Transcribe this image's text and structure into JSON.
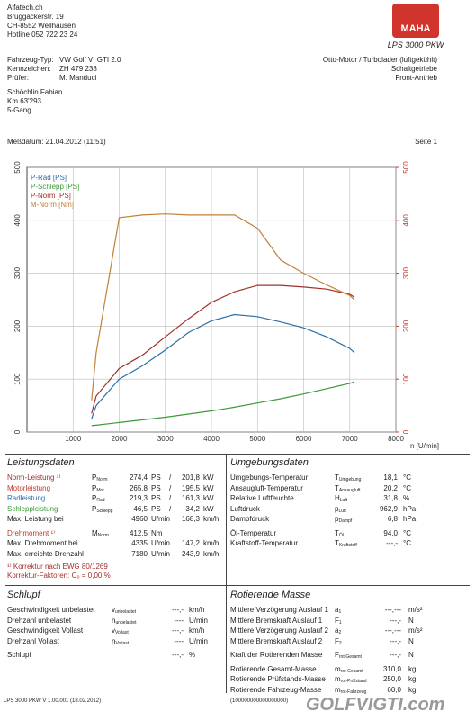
{
  "header": {
    "lines": [
      "Alfatech.ch",
      "Bruggackerstr. 19",
      "CH-8552 Wellhausen",
      "Hotline 052 722 23 24"
    ]
  },
  "logo": {
    "brand": "MAHA",
    "model": "LPS 3000 PKW"
  },
  "vehicle": {
    "rows": [
      [
        "Fahrzeug-Typ:",
        "VW Golf VI GTI 2.0",
        "Otto-Motor / Turbolader (luftgekühlt)"
      ],
      [
        "Kennzeichen:",
        "ZH 479 238",
        "Schaltgetriebe"
      ],
      [
        "Prüfer:",
        "M. Manduci",
        "Front-Antrieb"
      ]
    ]
  },
  "owner": {
    "lines": [
      "Schöchlin Fabian",
      "Km 63'293",
      "5-Gang"
    ]
  },
  "measurement": {
    "date": "Meßdatum: 21.04.2012 (11:51)",
    "page": "Seite 1"
  },
  "chart_data": {
    "type": "line",
    "x": [
      1400,
      1500,
      2000,
      2500,
      3000,
      3500,
      4000,
      4500,
      5000,
      5500,
      6000,
      6500,
      7000,
      7100
    ],
    "series": [
      {
        "name": "P-Rad [PS]",
        "color": "#2a6fa8",
        "values": [
          25,
          50,
          100,
          125,
          155,
          188,
          210,
          222,
          218,
          208,
          197,
          180,
          158,
          150
        ]
      },
      {
        "name": "P-Schlepp [PS]",
        "color": "#3a9a3a",
        "values": [
          12,
          13,
          18,
          23,
          28,
          34,
          40,
          47,
          55,
          63,
          72,
          82,
          92,
          95
        ]
      },
      {
        "name": "P-Norm [PS]",
        "color": "#a0302a",
        "values": [
          35,
          68,
          120,
          145,
          180,
          214,
          245,
          265,
          277,
          277,
          274,
          270,
          260,
          255
        ]
      },
      {
        "name": "M-Norm [Nm]",
        "color": "#c0803a",
        "axis": "y2",
        "values": [
          60,
          150,
          405,
          410,
          412,
          410,
          410,
          410,
          385,
          325,
          300,
          278,
          258,
          250
        ]
      }
    ],
    "x_label": "n [U/min]",
    "xlim": [
      0,
      8000
    ],
    "xticks": [
      1000,
      2000,
      3000,
      4000,
      5000,
      6000,
      7000,
      8000
    ],
    "ylim": [
      0,
      500
    ],
    "yticks": [
      0,
      100,
      200,
      300,
      400,
      500
    ],
    "y2lim": [
      0,
      500
    ],
    "y2ticks": [
      0,
      100,
      200,
      300,
      400,
      500
    ],
    "y2_color": "#c0392b",
    "grid": true
  },
  "sections": [
    {
      "title": "Leistungsdaten",
      "rows": [
        {
          "label": "Norm-Leistung ¹⁾",
          "color": "#a0302a",
          "sym": {
            "t": "P",
            "sub": "Norm"
          },
          "v1": "274,4",
          "u1": "PS",
          "sep": "/",
          "v2": "201,8",
          "u2": "kW"
        },
        {
          "label": "Motorleistung",
          "color": "#c0392b",
          "sym": {
            "t": "P",
            "sub": "Mot"
          },
          "v1": "265,8",
          "u1": "PS",
          "sep": "/",
          "v2": "195,5",
          "u2": "kW"
        },
        {
          "label": "Radleistung",
          "color": "#2a6fa8",
          "sym": {
            "t": "P",
            "sub": "Rad"
          },
          "v1": "219,3",
          "u1": "PS",
          "sep": "/",
          "v2": "161,3",
          "u2": "kW"
        },
        {
          "label": "Schleppleistung",
          "color": "#3a9a3a",
          "sym": {
            "t": "P",
            "sub": "Schlepp"
          },
          "v1": "46,5",
          "u1": "PS",
          "sep": "/",
          "v2": "34,2",
          "u2": "kW"
        },
        {
          "label": "Max. Leistung bei",
          "v1": "4960",
          "u1": "U/min",
          "v2": "168,3",
          "u2": "km/h"
        },
        {
          "label": "Drehmoment ¹⁾",
          "color": "#c0392b",
          "sym": {
            "t": "M",
            "sub": "Norm"
          },
          "v1": "412,5",
          "u1": "Nm"
        },
        {
          "label": "Max. Drehmoment bei",
          "v1": "4335",
          "u1": "U/min",
          "v2": "147,2",
          "u2": "km/h"
        },
        {
          "label": "Max. erreichte Drehzahl",
          "v1": "7180",
          "u1": "U/min",
          "v2": "243,9",
          "u2": "km/h"
        }
      ],
      "notes": [
        "¹⁾ Korrektur nach EWG 80/1269",
        "Korrektur-Faktoren: C₀ = 0,00 %"
      ]
    },
    {
      "title": "Umgebungsdaten",
      "rows": [
        {
          "label": "Umgebungs-Temperatur",
          "sym": {
            "t": "T",
            "sub": "Umgebung"
          },
          "v1": "18,1",
          "u1": "°C"
        },
        {
          "label": "Ansaugluft-Temperatur",
          "sym": {
            "t": "T",
            "sub": "Ansaugluft"
          },
          "v1": "20,2",
          "u1": "°C"
        },
        {
          "label": "Relative Luftfeuchte",
          "sym": {
            "t": "H",
            "sub": "Luft"
          },
          "v1": "31,8",
          "u1": "%"
        },
        {
          "label": "Luftdruck",
          "sym": {
            "t": "p",
            "sub": "Luft"
          },
          "v1": "962,9",
          "u1": "hPa"
        },
        {
          "label": "Dampfdruck",
          "sym": {
            "t": "p",
            "sub": "Dampf"
          },
          "v1": "6,8",
          "u1": "hPa"
        },
        {
          "label": "Öl-Temperatur",
          "sym": {
            "t": "T",
            "sub": "Öl"
          },
          "v1": "94,0",
          "u1": "°C"
        },
        {
          "label": "Kraftstoff-Temperatur",
          "sym": {
            "t": "T",
            "sub": "Kraftstoff"
          },
          "v1": "---,-",
          "u1": "°C"
        }
      ]
    },
    {
      "title": "Schlupf",
      "rows": [
        {
          "label": "Geschwindigkeit unbelastet",
          "sym": {
            "t": "v",
            "sub": "unbelastet"
          },
          "v1": "---,-",
          "u1": "km/h"
        },
        {
          "label": "Drehzahl unbelastet",
          "sym": {
            "t": "n",
            "sub": "unbelastet"
          },
          "v1": "----",
          "u1": "U/min"
        },
        {
          "label": "Geschwindigkeit Vollast",
          "sym": {
            "t": "v",
            "sub": "Vollast"
          },
          "v1": "---,-",
          "u1": "km/h"
        },
        {
          "label": "Drehzahl Vollast",
          "sym": {
            "t": "n",
            "sub": "Vollast"
          },
          "v1": "----",
          "u1": "U/min"
        },
        {
          "label": "Schlupf",
          "v1": "---,-",
          "u1": "%"
        }
      ]
    },
    {
      "title": "Rotierende Masse",
      "rows": [
        {
          "label": "Mittlere Verzögerung Auslauf 1",
          "sym": {
            "t": "a",
            "sub": "1"
          },
          "v1": "---,---",
          "u1": "m/s²"
        },
        {
          "label": "Mittlere Bremskraft Auslauf 1",
          "sym": {
            "t": "F",
            "sub": "1"
          },
          "v1": "---,-",
          "u1": "N"
        },
        {
          "label": "Mittlere Verzögerung Auslauf 2",
          "sym": {
            "t": "a",
            "sub": "2"
          },
          "v1": "---,---",
          "u1": "m/s²"
        },
        {
          "label": "Mittlere Bremskraft Auslauf 2",
          "sym": {
            "t": "F",
            "sub": "2"
          },
          "v1": "---,-",
          "u1": "N"
        },
        {
          "label": "Kraft der Rotierenden Masse",
          "sym": {
            "t": "F",
            "sub": "rot-Gesamt"
          },
          "v1": "---,-",
          "u1": "N"
        },
        {
          "label": "Rotierende Gesamt-Masse",
          "sym": {
            "t": "m",
            "sub": "rot-Gesamt"
          },
          "v1": "310,0",
          "u1": "kg"
        },
        {
          "label": "Rotierende Prüfstands-Masse",
          "sym": {
            "t": "m",
            "sub": "rot-Prüfstand"
          },
          "v1": "250,0",
          "u1": "kg"
        },
        {
          "label": "Rotierende Fahrzeug-Masse",
          "sym": {
            "t": "m",
            "sub": "rot-Fahrzeug"
          },
          "v1": "60,0",
          "u1": "kg"
        }
      ]
    }
  ],
  "footer": {
    "version": "LPS 3000 PKW V 1.00.001 (18.02.2012)",
    "serial": "(100000000000000000)"
  },
  "watermark": "GOLFVIGTI.com"
}
